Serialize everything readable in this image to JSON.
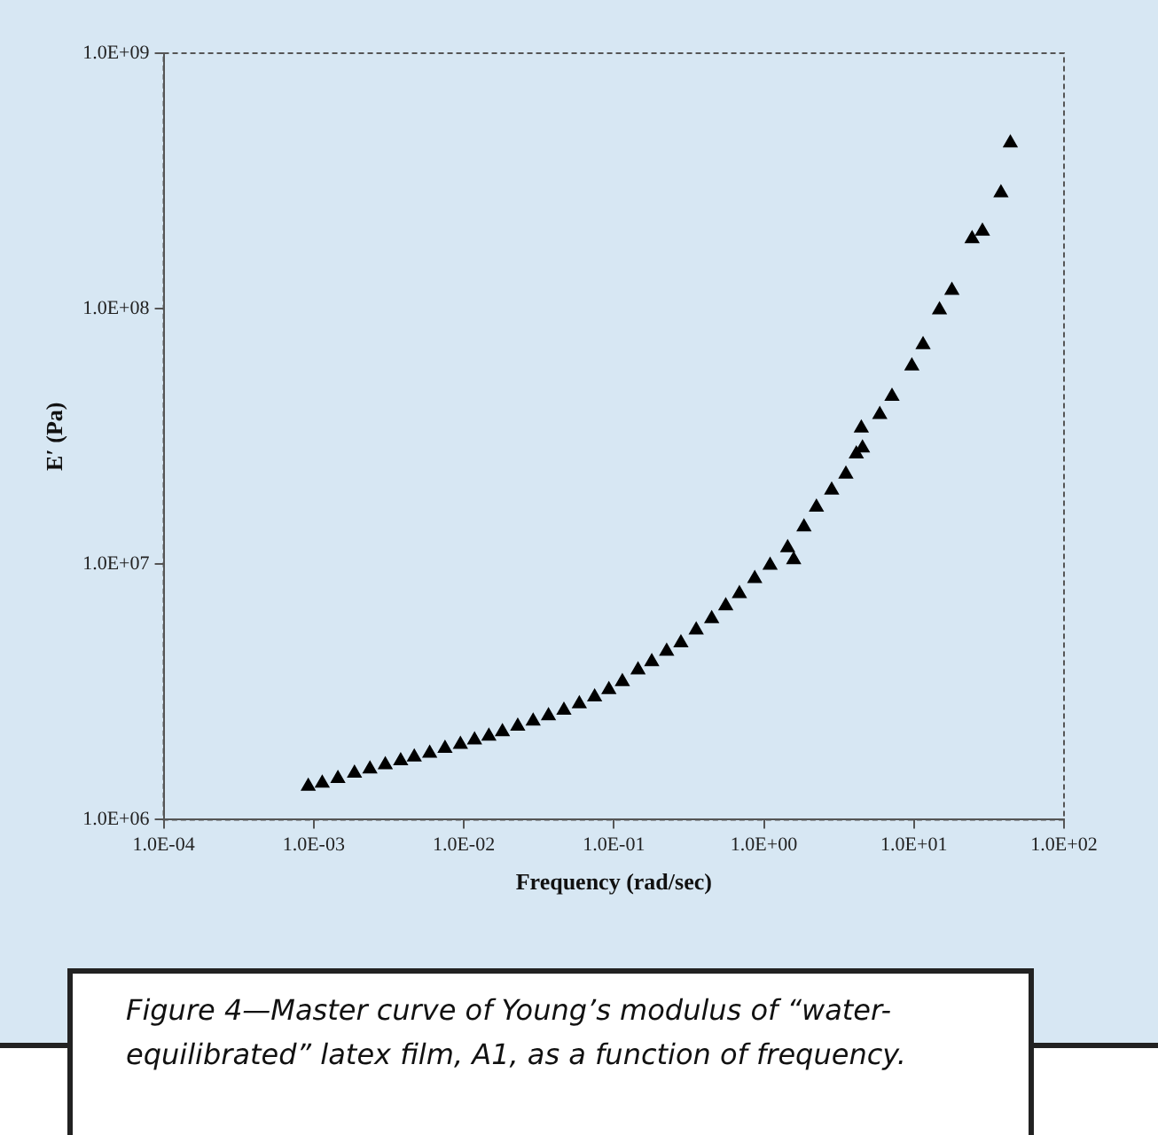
{
  "chart_data": {
    "type": "scatter",
    "xlabel": "Frequency (rad/sec)",
    "ylabel": "E′ (Pa)",
    "annotations": [
      "Figure 4—Master curve of Young’s modulus of “water-equilibrated” latex film, A1, as a function of frequency."
    ],
    "log": "xy",
    "grid": false,
    "legend": false,
    "marker": "triangle",
    "xlim": [
      0.0001,
      100
    ],
    "ylim": [
      1000000,
      1000000000
    ],
    "xticks": [
      {
        "value": 0.0001,
        "label": "1.0E-04"
      },
      {
        "value": 0.001,
        "label": "1.0E-03"
      },
      {
        "value": 0.01,
        "label": "1.0E-02"
      },
      {
        "value": 0.1,
        "label": "1.0E-01"
      },
      {
        "value": 1,
        "label": "1.0E+00"
      },
      {
        "value": 10,
        "label": "1.0E+01"
      },
      {
        "value": 100,
        "label": "1.0E+02"
      }
    ],
    "yticks": [
      {
        "value": 1000000,
        "label": "1.0E+06"
      },
      {
        "value": 10000000,
        "label": "1.0E+07"
      },
      {
        "value": 100000000,
        "label": "1.0E+08"
      },
      {
        "value": 1000000000,
        "label": "1.0E+09"
      }
    ],
    "series": [
      {
        "color": "#000000",
        "x": [
          0.00092,
          0.00114,
          0.00145,
          0.00187,
          0.00237,
          0.003,
          0.0038,
          0.00468,
          0.00593,
          0.0075,
          0.0095,
          0.0118,
          0.0147,
          0.0181,
          0.0229,
          0.029,
          0.0367,
          0.0465,
          0.0589,
          0.0745,
          0.0927,
          0.114,
          0.145,
          0.179,
          0.225,
          0.28,
          0.354,
          0.449,
          0.557,
          0.687,
          0.869,
          1.1,
          1.44,
          1.58,
          1.85,
          2.24,
          2.83,
          3.52,
          4.13,
          4.54,
          4.46,
          5.92,
          7.14,
          9.68,
          11.5,
          14.8,
          17.9,
          24.4,
          28.6,
          38,
          43.9
        ],
        "values": [
          1350000,
          1390000,
          1450000,
          1520000,
          1580000,
          1640000,
          1700000,
          1760000,
          1820000,
          1900000,
          1970000,
          2050000,
          2120000,
          2210000,
          2320000,
          2430000,
          2550000,
          2680000,
          2840000,
          3020000,
          3230000,
          3470000,
          3860000,
          4150000,
          4560000,
          4920000,
          5520000,
          6120000,
          6870000,
          7660000,
          8790000,
          9910000,
          11600000,
          10400000,
          14000000,
          16700000,
          19500000,
          22500000,
          27000000,
          28500000,
          34100000,
          38500000,
          45400000,
          59700000,
          72300000,
          98900000,
          118000000,
          188000000,
          201000000,
          284000000,
          445000000
        ]
      }
    ]
  }
}
